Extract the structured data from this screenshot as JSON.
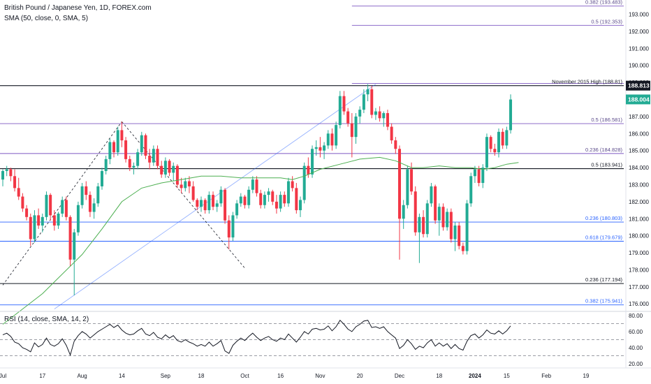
{
  "legend": {
    "symbol": "British Pound / Japanese Yen, 1D, FOREX.com",
    "sma": "SMA (50, close, 0, SMA, 5)",
    "rsi": "RSI (14, close, SMA, 14, 2)"
  },
  "colors": {
    "up": "#22ab94",
    "down": "#f23645",
    "fib_purple": "#7e57c2",
    "fib_blue": "#2962ff",
    "sr_black": "#131722",
    "sma": "#4caf50",
    "trend_blue": "#2962ff",
    "rsi_line": "#131722"
  },
  "chart_data": [
    {
      "type": "candlestick",
      "instrument": "British Pound / Japanese Yen",
      "timeframe": "1D",
      "source": "FOREX.com",
      "ylim": [
        175.6,
        193.8
      ],
      "y_ticks": [
        "193.000",
        "192.000",
        "191.000",
        "190.000",
        "189.000",
        "188.000",
        "187.000",
        "186.000",
        "185.000",
        "184.000",
        "183.000",
        "182.000",
        "181.000",
        "180.000",
        "179.000",
        "178.000",
        "177.000",
        "176.000"
      ],
      "x_ticks": [
        "Jul",
        "17",
        "Aug",
        "14",
        "Sep",
        "18",
        "Oct",
        "16",
        "Nov",
        "20",
        "Dec",
        "18",
        "2024",
        "15",
        "Feb",
        "19"
      ],
      "price_labels": [
        {
          "text": "188.813",
          "value": 188.813,
          "style": "dark"
        },
        {
          "text": "188.004",
          "value": 188.004,
          "style": "green"
        }
      ],
      "levels": [
        {
          "value": 193.483,
          "label": "0.382 (193.483)",
          "kind": "fib_purple",
          "start_bar": 88
        },
        {
          "value": 192.353,
          "label": "0.5 (192.353)",
          "kind": "fib_purple",
          "start_bar": 88
        },
        {
          "value": 188.945,
          "label": "",
          "kind": "fib_purple",
          "start_bar": 88
        },
        {
          "value": 188.81,
          "label": "November 2015 High (188.81)",
          "kind": "sr_black",
          "start_bar": 0
        },
        {
          "value": 186.581,
          "label": "0.5 (186.581)",
          "kind": "fib_purple",
          "start_bar": 0
        },
        {
          "value": 184.828,
          "label": "0.236 (184.828)",
          "kind": "fib_purple",
          "start_bar": 0
        },
        {
          "value": 183.941,
          "label": "0.5 (183.941)",
          "kind": "sr_black",
          "start_bar": 0
        },
        {
          "value": 180.803,
          "label": "0.236 (180.803)",
          "kind": "fib_blue",
          "start_bar": 0
        },
        {
          "value": 179.679,
          "label": "0.618 (179.679)",
          "kind": "fib_blue",
          "start_bar": 0
        },
        {
          "value": 177.194,
          "label": "0.236 (177.194)",
          "kind": "sr_black",
          "start_bar": 0
        },
        {
          "value": 175.941,
          "label": "0.382 (175.941)",
          "kind": "fib_blue",
          "start_bar": 0
        }
      ],
      "candles": [
        [
          183.3,
          183.9,
          182.9,
          183.8
        ],
        [
          183.8,
          184.1,
          183.5,
          183.9
        ],
        [
          183.9,
          184.0,
          183.2,
          183.5
        ],
        [
          183.5,
          183.9,
          182.6,
          182.8
        ],
        [
          182.8,
          183.4,
          182.1,
          182.3
        ],
        [
          182.3,
          182.5,
          181.4,
          181.6
        ],
        [
          181.6,
          181.8,
          180.9,
          181.1
        ],
        [
          181.1,
          181.3,
          179.4,
          179.8
        ],
        [
          179.8,
          181.5,
          179.6,
          181.2
        ],
        [
          181.2,
          181.6,
          180.4,
          180.6
        ],
        [
          180.6,
          181.3,
          180.2,
          181.1
        ],
        [
          181.1,
          182.6,
          180.9,
          182.4
        ],
        [
          182.4,
          182.5,
          180.9,
          181.2
        ],
        [
          181.2,
          181.5,
          180.3,
          180.6
        ],
        [
          180.6,
          181.4,
          180.4,
          181.3
        ],
        [
          181.3,
          182.3,
          181.1,
          182.1
        ],
        [
          182.1,
          182.3,
          180.9,
          181.1
        ],
        [
          181.1,
          181.2,
          178.2,
          178.6
        ],
        [
          178.6,
          180.4,
          176.5,
          180.2
        ],
        [
          180.2,
          182.0,
          180.0,
          181.8
        ],
        [
          181.8,
          183.1,
          181.6,
          182.9
        ],
        [
          182.9,
          183.2,
          182.1,
          182.4
        ],
        [
          182.4,
          182.6,
          181.1,
          181.4
        ],
        [
          181.4,
          182.2,
          181.0,
          181.9
        ],
        [
          181.9,
          183.1,
          181.7,
          182.9
        ],
        [
          182.9,
          184.0,
          182.7,
          183.8
        ],
        [
          183.8,
          184.7,
          183.6,
          184.5
        ],
        [
          184.5,
          185.7,
          184.2,
          185.5
        ],
        [
          185.5,
          185.6,
          184.6,
          184.9
        ],
        [
          184.9,
          186.4,
          184.7,
          186.2
        ],
        [
          186.2,
          186.7,
          185.2,
          185.6
        ],
        [
          185.6,
          185.8,
          184.3,
          184.5
        ],
        [
          184.5,
          184.7,
          183.8,
          184.0
        ],
        [
          184.0,
          184.3,
          183.6,
          184.1
        ],
        [
          184.1,
          185.1,
          183.9,
          184.9
        ],
        [
          184.9,
          186.1,
          184.7,
          185.9
        ],
        [
          185.9,
          186.0,
          184.5,
          184.7
        ],
        [
          184.7,
          185.1,
          183.9,
          184.3
        ],
        [
          184.3,
          185.3,
          184.1,
          185.1
        ],
        [
          185.1,
          185.3,
          183.9,
          184.1
        ],
        [
          184.1,
          184.4,
          183.4,
          183.6
        ],
        [
          183.6,
          184.6,
          183.4,
          184.4
        ],
        [
          184.4,
          184.5,
          183.5,
          183.7
        ],
        [
          183.7,
          184.3,
          183.2,
          184.1
        ],
        [
          184.1,
          184.2,
          182.8,
          183.0
        ],
        [
          183.0,
          183.4,
          182.5,
          182.8
        ],
        [
          182.8,
          183.4,
          182.6,
          183.2
        ],
        [
          183.2,
          183.5,
          182.5,
          182.9
        ],
        [
          182.9,
          183.2,
          182.0,
          182.1
        ],
        [
          182.1,
          182.2,
          181.5,
          181.7
        ],
        [
          181.7,
          182.3,
          181.4,
          182.1
        ],
        [
          182.1,
          182.2,
          181.3,
          181.5
        ],
        [
          181.5,
          182.6,
          181.3,
          182.4
        ],
        [
          182.4,
          182.6,
          181.5,
          181.7
        ],
        [
          181.7,
          182.1,
          181.4,
          181.9
        ],
        [
          181.9,
          182.9,
          181.7,
          182.7
        ],
        [
          182.7,
          182.8,
          180.7,
          180.9
        ],
        [
          180.9,
          181.2,
          179.2,
          179.9
        ],
        [
          179.9,
          181.4,
          179.7,
          181.2
        ],
        [
          181.2,
          182.1,
          181.0,
          181.9
        ],
        [
          181.9,
          182.5,
          181.7,
          182.3
        ],
        [
          182.3,
          182.4,
          181.6,
          181.8
        ],
        [
          181.8,
          182.9,
          181.6,
          182.7
        ],
        [
          182.7,
          183.5,
          182.5,
          183.3
        ],
        [
          183.3,
          183.5,
          182.3,
          182.5
        ],
        [
          182.5,
          182.7,
          181.6,
          181.8
        ],
        [
          181.8,
          182.6,
          181.6,
          182.4
        ],
        [
          182.4,
          182.8,
          182.0,
          182.6
        ],
        [
          182.6,
          182.7,
          181.8,
          182.0
        ],
        [
          182.0,
          182.4,
          181.3,
          181.6
        ],
        [
          181.6,
          182.6,
          181.4,
          182.4
        ],
        [
          182.4,
          182.6,
          181.7,
          181.9
        ],
        [
          181.9,
          183.4,
          181.7,
          183.2
        ],
        [
          183.2,
          183.5,
          182.6,
          182.8
        ],
        [
          182.8,
          183.1,
          181.3,
          181.5
        ],
        [
          181.5,
          182.3,
          181.1,
          182.1
        ],
        [
          182.1,
          184.3,
          181.9,
          184.1
        ],
        [
          184.1,
          184.6,
          183.4,
          183.6
        ],
        [
          183.6,
          185.3,
          183.4,
          185.1
        ],
        [
          185.1,
          185.6,
          184.7,
          185.2
        ],
        [
          185.2,
          185.8,
          184.6,
          185.0
        ],
        [
          185.0,
          185.5,
          184.5,
          185.3
        ],
        [
          185.3,
          186.2,
          185.1,
          186.0
        ],
        [
          186.0,
          186.3,
          185.0,
          185.3
        ],
        [
          185.3,
          186.7,
          185.1,
          186.5
        ],
        [
          186.5,
          188.5,
          186.3,
          188.2
        ],
        [
          188.2,
          188.5,
          187.1,
          187.3
        ],
        [
          187.3,
          187.5,
          186.4,
          186.6
        ],
        [
          186.6,
          187.2,
          184.6,
          185.8
        ],
        [
          185.8,
          187.2,
          185.4,
          187.0
        ],
        [
          187.0,
          187.6,
          186.6,
          187.4
        ],
        [
          187.4,
          188.6,
          187.2,
          188.3
        ],
        [
          188.3,
          188.9,
          187.9,
          188.6
        ],
        [
          188.6,
          188.8,
          186.9,
          187.1
        ],
        [
          187.1,
          187.5,
          186.8,
          187.3
        ],
        [
          187.3,
          187.6,
          186.7,
          186.9
        ],
        [
          186.9,
          187.3,
          186.4,
          187.2
        ],
        [
          187.2,
          187.4,
          186.2,
          186.4
        ],
        [
          186.4,
          186.6,
          185.4,
          185.6
        ],
        [
          185.6,
          185.8,
          184.8,
          185.1
        ],
        [
          185.1,
          185.3,
          178.6,
          181.0
        ],
        [
          181.0,
          182.1,
          180.4,
          181.8
        ],
        [
          181.8,
          184.1,
          181.6,
          183.9
        ],
        [
          183.9,
          184.3,
          182.4,
          182.6
        ],
        [
          182.6,
          182.9,
          180.0,
          180.2
        ],
        [
          180.2,
          181.3,
          178.4,
          181.1
        ],
        [
          181.1,
          181.5,
          179.9,
          180.1
        ],
        [
          180.1,
          182.1,
          179.9,
          181.9
        ],
        [
          181.9,
          183.1,
          181.7,
          182.9
        ],
        [
          182.9,
          183.0,
          180.7,
          180.9
        ],
        [
          180.9,
          181.9,
          180.0,
          181.7
        ],
        [
          181.7,
          181.9,
          180.3,
          180.5
        ],
        [
          180.5,
          181.6,
          180.3,
          181.4
        ],
        [
          181.4,
          181.6,
          179.6,
          179.8
        ],
        [
          179.8,
          180.8,
          179.1,
          180.6
        ],
        [
          180.6,
          180.8,
          179.2,
          179.4
        ],
        [
          179.4,
          179.6,
          178.9,
          179.1
        ],
        [
          179.1,
          182.1,
          178.9,
          181.9
        ],
        [
          181.9,
          183.7,
          181.7,
          183.5
        ],
        [
          183.5,
          184.1,
          183.1,
          183.9
        ],
        [
          183.9,
          184.1,
          182.9,
          183.1
        ],
        [
          183.1,
          184.2,
          182.8,
          184.0
        ],
        [
          184.0,
          186.0,
          183.8,
          185.8
        ],
        [
          185.8,
          185.9,
          184.9,
          185.1
        ],
        [
          185.1,
          185.4,
          184.7,
          184.9
        ],
        [
          184.9,
          186.3,
          184.6,
          186.1
        ],
        [
          186.1,
          186.3,
          185.1,
          185.3
        ],
        [
          185.3,
          186.4,
          185.1,
          186.2
        ],
        [
          186.2,
          188.3,
          186.0,
          188.0
        ]
      ],
      "sma_points": [
        [
          0,
          174.8
        ],
        [
          10,
          176.6
        ],
        [
          20,
          178.9
        ],
        [
          25,
          180.4
        ],
        [
          30,
          182.0
        ],
        [
          35,
          182.8
        ],
        [
          40,
          183.1
        ],
        [
          45,
          183.3
        ],
        [
          50,
          183.5
        ],
        [
          55,
          183.5
        ],
        [
          60,
          183.4
        ],
        [
          65,
          183.4
        ],
        [
          70,
          183.4
        ],
        [
          73,
          183.3
        ],
        [
          76,
          183.5
        ],
        [
          80,
          183.9
        ],
        [
          85,
          184.2
        ],
        [
          90,
          184.5
        ],
        [
          95,
          184.6
        ],
        [
          99,
          184.4
        ],
        [
          103,
          184.0
        ],
        [
          106,
          184.0
        ],
        [
          110,
          184.1
        ],
        [
          114,
          184.0
        ],
        [
          118,
          184.0
        ],
        [
          121,
          183.9
        ],
        [
          124,
          184.0
        ],
        [
          127,
          184.2
        ],
        [
          130,
          184.3
        ]
      ],
      "trendlines": [
        {
          "style": "solid",
          "color": "trend_blue",
          "from": [
            13,
            175.7
          ],
          "to": [
            94,
            188.9
          ]
        },
        {
          "style": "dashed",
          "color": "sr_black",
          "from": [
            0,
            177.1
          ],
          "to": [
            30,
            186.7
          ]
        },
        {
          "style": "dashed",
          "color": "sr_black",
          "from": [
            30,
            186.7
          ],
          "to": [
            61,
            178.1
          ]
        }
      ]
    },
    {
      "type": "line",
      "name": "RSI (14, close, SMA, 14, 2)",
      "ylim": [
        15,
        85
      ],
      "y_ticks": [
        "80.00",
        "60.00",
        "40.00",
        "20.00"
      ],
      "bands": [
        30,
        50,
        70
      ],
      "values": [
        56,
        58,
        54,
        47,
        45,
        40,
        38,
        35,
        46,
        41,
        44,
        52,
        44,
        42,
        45,
        51,
        43,
        31,
        48,
        55,
        60,
        57,
        52,
        56,
        60,
        63,
        66,
        69,
        65,
        68,
        62,
        58,
        56,
        57,
        61,
        64,
        57,
        55,
        59,
        53,
        51,
        56,
        52,
        55,
        49,
        47,
        50,
        47,
        45,
        42,
        44,
        42,
        47,
        42,
        45,
        49,
        36,
        33,
        43,
        48,
        52,
        49,
        54,
        58,
        53,
        49,
        52,
        54,
        50,
        48,
        52,
        50,
        57,
        52,
        47,
        53,
        60,
        57,
        63,
        64,
        62,
        63,
        67,
        61,
        66,
        74,
        69,
        63,
        60,
        66,
        69,
        73,
        74,
        65,
        66,
        64,
        66,
        60,
        56,
        52,
        39,
        43,
        50,
        45,
        38,
        42,
        40,
        46,
        50,
        42,
        46,
        42,
        45,
        39,
        44,
        39,
        37,
        48,
        55,
        57,
        52,
        56,
        62,
        58,
        57,
        61,
        57,
        61,
        67
      ]
    }
  ],
  "labels": {
    "y_ticks_main": [
      "193.000",
      "192.000",
      "191.000",
      "190.000",
      "189.000",
      "188.000",
      "187.000",
      "186.000",
      "185.000",
      "184.000",
      "183.000",
      "182.000",
      "181.000",
      "180.000",
      "179.000",
      "178.000",
      "177.000",
      "176.000"
    ]
  }
}
